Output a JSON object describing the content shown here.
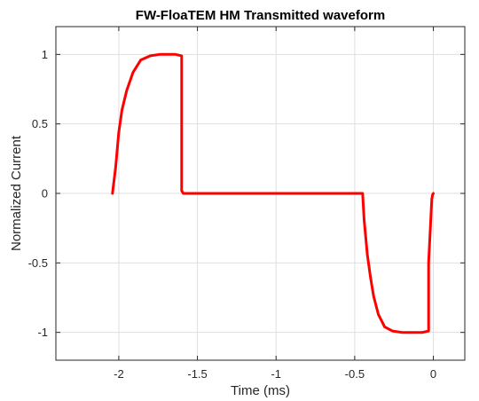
{
  "chart_data": {
    "type": "line",
    "title": "FW-FloaTEM HM Transmitted waveform",
    "xlabel": "Time (ms)",
    "ylabel": "Normalized Current",
    "xlim": [
      -2.4,
      0.2
    ],
    "ylim": [
      -1.2,
      1.2
    ],
    "xticks": [
      -2,
      -1.5,
      -1,
      -0.5,
      0
    ],
    "xtick_labels": [
      "-2",
      "-1.5",
      "-1",
      "-0.5",
      "0"
    ],
    "yticks": [
      1,
      0.5,
      0,
      -0.5,
      -1
    ],
    "ytick_labels": [
      "1",
      "0.5",
      "0",
      "-0.5",
      "-1"
    ],
    "grid": true,
    "line_color": "#ff0000",
    "series": [
      {
        "x": [
          -2.04,
          -2.02,
          -2.0,
          -1.98,
          -1.95,
          -1.91,
          -1.86,
          -1.8,
          -1.74,
          -1.68,
          -1.64,
          -1.6,
          -1.6,
          -1.59,
          -0.45,
          -0.44,
          -0.42,
          -0.4,
          -0.38,
          -0.35,
          -0.31,
          -0.26,
          -0.2,
          -0.14,
          -0.07,
          -0.03,
          -0.03,
          -0.01,
          -0.005,
          0.0
        ],
        "y": [
          0.0,
          0.19,
          0.44,
          0.6,
          0.74,
          0.87,
          0.96,
          0.99,
          1.0,
          1.0,
          1.0,
          0.99,
          0.02,
          0.0,
          0.0,
          -0.19,
          -0.44,
          -0.6,
          -0.74,
          -0.87,
          -0.96,
          -0.99,
          -1.0,
          -1.0,
          -1.0,
          -0.99,
          -0.5,
          -0.04,
          -0.01,
          0.0
        ]
      }
    ]
  }
}
